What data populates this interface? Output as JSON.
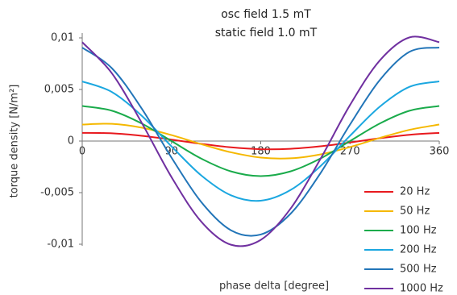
{
  "chart_data": {
    "type": "line",
    "title": "osc field 1.5 mT",
    "subtitle": "static field 1.0 mT",
    "x_label": "phase delta [degree]",
    "y_label": "torque density [N/m²]",
    "x": [
      0,
      30,
      60,
      90,
      120,
      150,
      180,
      210,
      240,
      270,
      300,
      330,
      360
    ],
    "xlim": [
      0,
      360
    ],
    "xticks": [
      0,
      90,
      180,
      270,
      360
    ],
    "ylim": [
      -0.01,
      0.01
    ],
    "yticks": [
      {
        "value": -0.01,
        "label": "-0,01"
      },
      {
        "value": -0.005,
        "label": "-0,005"
      },
      0,
      {
        "value": 0.005,
        "label": "0,005"
      },
      {
        "value": 0.01,
        "label": "0,01"
      }
    ],
    "grid": false,
    "legend": "lower right",
    "series": [
      {
        "name": "20 Hz",
        "color": "#e8191e",
        "values": [
          0.00079,
          0.00075,
          0.00051,
          0.00014,
          -0.00027,
          -0.00061,
          -0.00079,
          -0.00075,
          -0.00051,
          -0.00014,
          0.00027,
          0.00061,
          0.00079
        ]
      },
      {
        "name": "50 Hz",
        "color": "#f5b800",
        "values": [
          0.0016,
          0.00167,
          0.0013,
          0.00058,
          -0.0003,
          -0.00109,
          -0.0016,
          -0.00167,
          -0.0013,
          -0.00058,
          0.0003,
          0.00109,
          0.0016
        ]
      },
      {
        "name": "100 Hz",
        "color": "#1aab4b",
        "values": [
          0.0034,
          0.00294,
          0.0017,
          0,
          -0.0017,
          -0.00294,
          -0.0034,
          -0.00294,
          -0.0017,
          0,
          0.0017,
          0.00294,
          0.0034
        ]
      },
      {
        "name": "200 Hz",
        "color": "#1ba7e0",
        "values": [
          0.00578,
          0.00475,
          0.00245,
          -0.00051,
          -0.00333,
          -0.00526,
          -0.00578,
          -0.00475,
          -0.00245,
          0.00051,
          0.00333,
          0.00526,
          0.00578
        ]
      },
      {
        "name": "500 Hz",
        "color": "#2275b8",
        "values": [
          0.00906,
          0.00705,
          0.00315,
          -0.0016,
          -0.00591,
          -0.00865,
          -0.00906,
          -0.00705,
          -0.00315,
          0.0016,
          0.00591,
          0.00865,
          0.00906
        ]
      },
      {
        "name": "1000 Hz",
        "color": "#7030a0",
        "values": [
          0.00958,
          0.00656,
          0.00177,
          -0.00349,
          -0.00781,
          -0.01005,
          -0.00958,
          -0.00656,
          -0.00177,
          0.00349,
          0.00781,
          0.01005,
          0.00958
        ]
      }
    ]
  }
}
